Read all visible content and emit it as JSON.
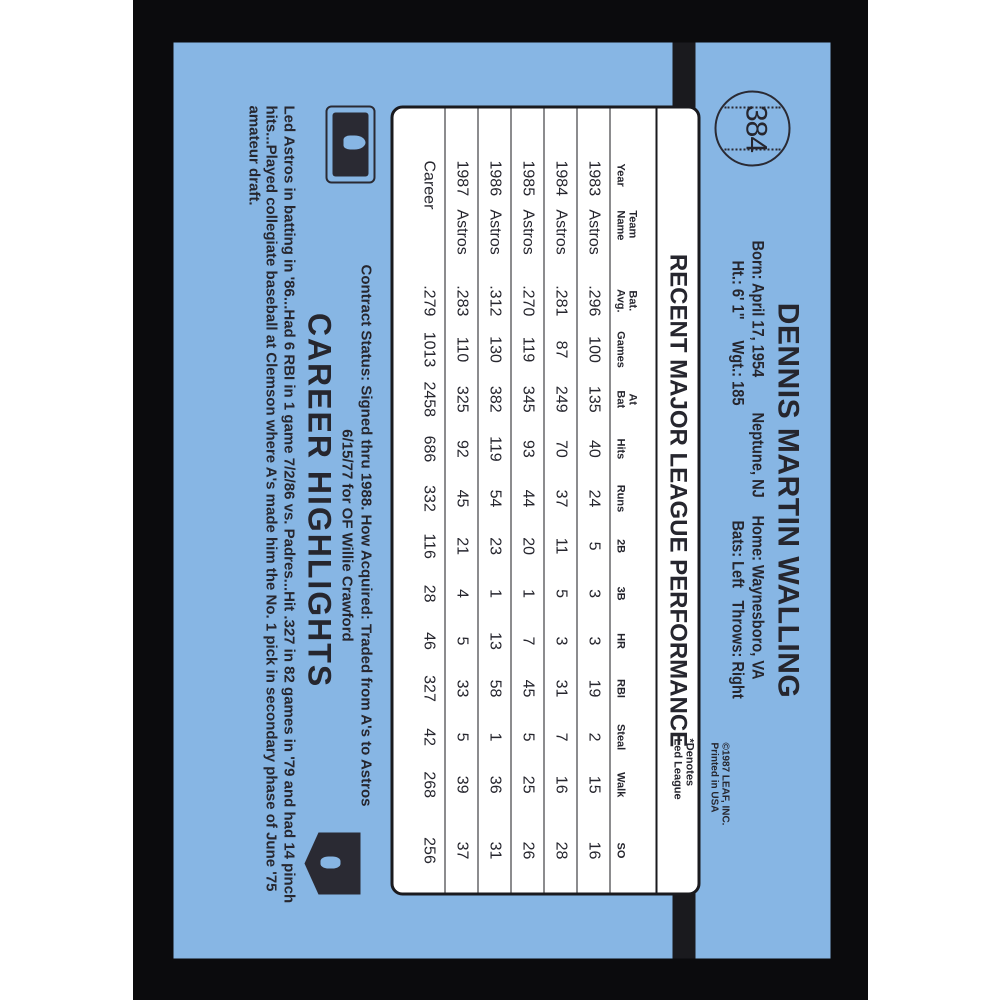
{
  "card": {
    "number": "384",
    "name": "DENNIS MARTIN WALLING",
    "bio": {
      "born": "Born: April 17, 1954",
      "birthplace": "Neptune, NJ",
      "home": "Home: Waynesboro, VA",
      "height": "Ht.: 6' 1\"",
      "weight": "Wgt.: 185",
      "bats": "Bats: Left",
      "throws": "Throws: Right"
    },
    "copyright": [
      "©1987 LEAF, INC.",
      "Printed in USA"
    ],
    "colors": {
      "card_blue": "#87b6e4",
      "ink": "#26262e",
      "border": "#0b0b0d"
    }
  },
  "stats": {
    "title": "RECENT MAJOR LEAGUE PERFORMANCE",
    "note": [
      "*Denotes",
      "Led League"
    ],
    "headers": [
      [
        "",
        "Year"
      ],
      [
        "Team",
        "Name"
      ],
      [
        "Bat.",
        "Avg."
      ],
      [
        "",
        "Games"
      ],
      [
        "At",
        "Bat"
      ],
      [
        "",
        "Hits"
      ],
      [
        "",
        "Runs"
      ],
      [
        "",
        "2B"
      ],
      [
        "",
        "3B"
      ],
      [
        "",
        "HR"
      ],
      [
        "",
        "RBI"
      ],
      [
        "",
        "Steal"
      ],
      [
        "",
        "Walk"
      ],
      [
        "",
        "SO"
      ]
    ],
    "rows": [
      [
        "1983",
        "Astros",
        ".296",
        "100",
        "135",
        "40",
        "24",
        "5",
        "3",
        "3",
        "19",
        "2",
        "15",
        "16"
      ],
      [
        "1984",
        "Astros",
        ".281",
        "87",
        "249",
        "70",
        "37",
        "11",
        "5",
        "3",
        "31",
        "7",
        "16",
        "28"
      ],
      [
        "1985",
        "Astros",
        ".270",
        "119",
        "345",
        "93",
        "44",
        "20",
        "1",
        "7",
        "45",
        "5",
        "25",
        "26"
      ],
      [
        "1986",
        "Astros",
        ".312",
        "130",
        "382",
        "119",
        "54",
        "23",
        "1",
        "13",
        "58",
        "1",
        "36",
        "31"
      ],
      [
        "1987",
        "Astros",
        ".283",
        "110",
        "325",
        "92",
        "45",
        "21",
        "4",
        "5",
        "33",
        "5",
        "39",
        "37"
      ],
      [
        "Career",
        "",
        ".279",
        "1013",
        "2458",
        "686",
        "332",
        "116",
        "28",
        "46",
        "327",
        "42",
        "268",
        "256"
      ]
    ]
  },
  "contract": [
    "Contract Status: Signed thru 1988. How Acquired: Traded from A's to Astros",
    "6/15/77 for OF Willie Crawford"
  ],
  "highlights": {
    "title": "CAREER HIGHLIGHTS",
    "text": "Led Astros in batting in '86...Had 6 RBI in 1 game 7/2/86 vs. Padres...Hit .327 in 82 games in '79 and had 14 pinch hits...Played collegiate baseball at Clemson where A's made him the No. 1 pick in secondary phase of June '75 amateur draft."
  },
  "icons": {
    "card_number": "baseball-icon",
    "league_logo": "mlb-logo-icon",
    "union_logo": "mlbpa-logo-icon"
  }
}
